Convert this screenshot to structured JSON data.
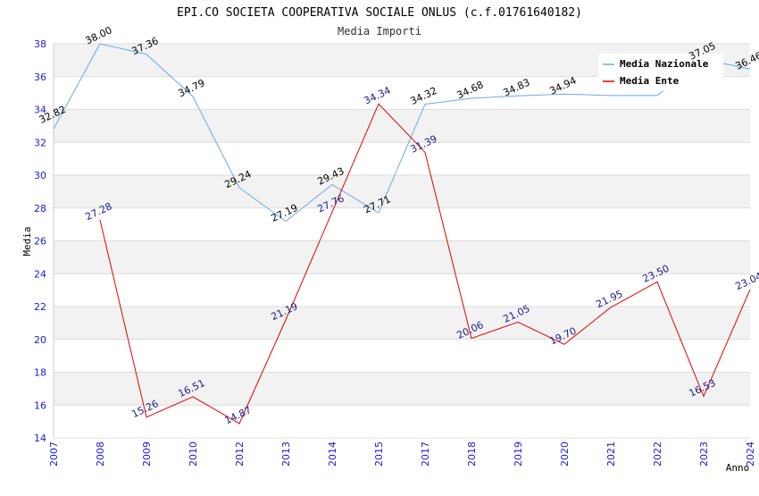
{
  "chart_data": {
    "type": "line",
    "title": "EPI.CO SOCIETA COOPERATIVA SOCIALE ONLUS (c.f.01761640182)",
    "subtitle": "Media Importi",
    "xlabel": "Anno",
    "ylabel": "Media",
    "ylim": [
      14,
      38
    ],
    "yticks": [
      "14",
      "16",
      "18",
      "20",
      "22",
      "24",
      "26",
      "28",
      "30",
      "32",
      "34",
      "36",
      "38"
    ],
    "grid": "horizontal bands",
    "legend_position": "top-right",
    "categories": [
      "2007",
      "2008",
      "2009",
      "2010",
      "2012",
      "2013",
      "2014",
      "2015",
      "2017",
      "2018",
      "2019",
      "2020",
      "2021",
      "2022",
      "2023",
      "2024"
    ],
    "series": [
      {
        "name": "Media Nazionale",
        "color": "#6aaae6",
        "values": [
          32.82,
          38.0,
          37.36,
          34.79,
          29.24,
          27.19,
          29.43,
          27.71,
          34.32,
          34.68,
          34.83,
          34.94,
          34.85,
          34.85,
          37.05,
          36.46
        ],
        "labels": [
          "32.82",
          "38.00",
          "37.36",
          "34.79",
          "29.24",
          "27.19",
          "29.43",
          "27.71",
          "34.32",
          "34.68",
          "34.83",
          "34.94",
          "",
          "",
          "37.05",
          "36.46"
        ]
      },
      {
        "name": "Media Ente",
        "color": "#e60000",
        "values": [
          null,
          27.28,
          15.26,
          16.51,
          14.87,
          21.19,
          27.76,
          34.34,
          31.39,
          20.06,
          21.05,
          19.7,
          21.95,
          23.5,
          16.53,
          23.04
        ],
        "labels": [
          "",
          "27.28",
          "15.26",
          "16.51",
          "14.87",
          "21.19",
          "27.76",
          "34.34",
          "31.39",
          "20.06",
          "21.05",
          "19.70",
          "21.95",
          "23.50",
          "16.53",
          "23.04"
        ]
      }
    ]
  }
}
